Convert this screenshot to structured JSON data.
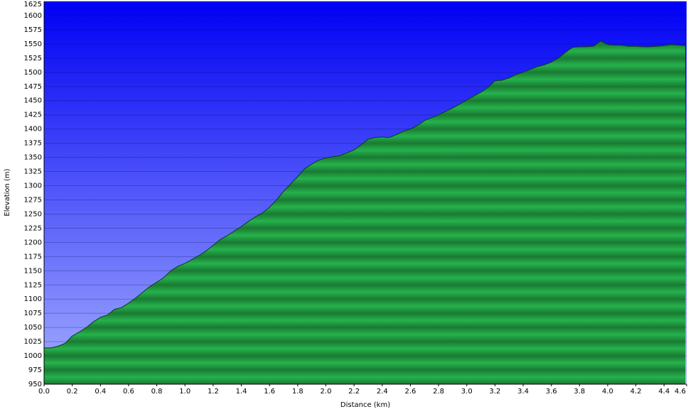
{
  "chart_data": {
    "type": "area",
    "x_label": "Distance   (km)",
    "y_label": "Elevation (m)",
    "x": [
      0,
      0.05,
      0.1,
      0.15,
      0.2,
      0.25,
      0.3,
      0.35,
      0.4,
      0.45,
      0.5,
      0.55,
      0.6,
      0.65,
      0.7,
      0.75,
      0.8,
      0.85,
      0.9,
      0.95,
      1.0,
      1.05,
      1.1,
      1.15,
      1.2,
      1.25,
      1.3,
      1.35,
      1.4,
      1.45,
      1.5,
      1.55,
      1.6,
      1.65,
      1.7,
      1.75,
      1.8,
      1.85,
      1.9,
      1.95,
      2.0,
      2.05,
      2.1,
      2.15,
      2.2,
      2.25,
      2.3,
      2.35,
      2.4,
      2.45,
      2.5,
      2.55,
      2.6,
      2.65,
      2.7,
      2.75,
      2.8,
      2.85,
      2.9,
      2.95,
      3.0,
      3.05,
      3.1,
      3.15,
      3.2,
      3.25,
      3.3,
      3.35,
      3.4,
      3.45,
      3.5,
      3.55,
      3.6,
      3.65,
      3.7,
      3.75,
      3.8,
      3.85,
      3.9,
      3.95,
      4.0,
      4.05,
      4.1,
      4.15,
      4.2,
      4.25,
      4.3,
      4.35,
      4.4,
      4.45,
      4.5,
      4.55
    ],
    "values": [
      1014,
      1014,
      1017,
      1022,
      1035,
      1042,
      1050,
      1060,
      1068,
      1072,
      1082,
      1085,
      1093,
      1102,
      1112,
      1122,
      1130,
      1138,
      1150,
      1158,
      1163,
      1170,
      1177,
      1185,
      1195,
      1205,
      1212,
      1220,
      1228,
      1237,
      1245,
      1252,
      1262,
      1275,
      1290,
      1303,
      1316,
      1330,
      1338,
      1345,
      1349,
      1351,
      1353,
      1358,
      1363,
      1372,
      1382,
      1385,
      1386,
      1385,
      1390,
      1396,
      1400,
      1406,
      1415,
      1420,
      1425,
      1431,
      1437,
      1444,
      1451,
      1458,
      1465,
      1473,
      1485,
      1486,
      1490,
      1496,
      1500,
      1505,
      1510,
      1513,
      1518,
      1525,
      1535,
      1544,
      1545,
      1545,
      1546,
      1555,
      1549,
      1548,
      1548,
      1546,
      1546,
      1545,
      1545,
      1546,
      1547,
      1549,
      1548,
      1547
    ],
    "color": "#22a345",
    "xlim": [
      0,
      4.56
    ],
    "ylim": [
      950,
      1625
    ],
    "xticks": [
      {
        "value": 0,
        "label": "0.0"
      },
      0.2,
      0.4,
      0.6,
      0.8,
      {
        "value": 1,
        "label": "1.0"
      },
      1.2,
      1.4,
      1.6,
      1.8,
      {
        "value": 2,
        "label": "2.0"
      },
      2.2,
      2.4,
      2.6,
      2.8,
      {
        "value": 3,
        "label": "3.0"
      },
      3.2,
      3.4,
      3.6,
      3.8,
      {
        "value": 4,
        "label": "4.0"
      },
      4.2,
      4.4,
      4.6
    ],
    "yticks": [
      950,
      975,
      1000,
      1025,
      1050,
      1075,
      1100,
      1125,
      1150,
      1175,
      1200,
      1225,
      1250,
      1275,
      1300,
      1325,
      1350,
      1375,
      1400,
      1425,
      1450,
      1475,
      1500,
      1525,
      1550,
      1575,
      1600,
      1625
    ],
    "grid": true
  }
}
